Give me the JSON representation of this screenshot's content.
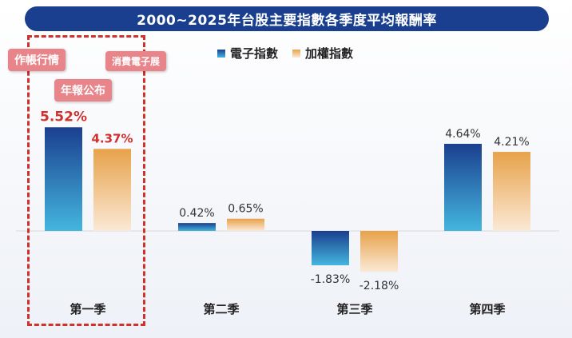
{
  "title": "2000~2025年台股主要指數各季度平均報酬率",
  "legend": {
    "electronics": "電子指數",
    "weighted": "加權指數"
  },
  "colors": {
    "electronics_top": "#1b3f8e",
    "electronics_bottom": "#44b6df",
    "weighted_top": "#e7a24a",
    "weighted_bottom": "#fbe9d6",
    "highlight": "#d0312d",
    "tag_bg": "#e8858a"
  },
  "annotations": {
    "tag1": "作帳行情",
    "tag2": "消費電子展",
    "tag3": "年報公布"
  },
  "chart_data": {
    "type": "bar",
    "categories": [
      "第一季",
      "第二季",
      "第三季",
      "第四季"
    ],
    "series": [
      {
        "name": "電子指數",
        "values": [
          5.52,
          0.42,
          -1.83,
          4.64
        ],
        "labels": [
          "5.52%",
          "0.42%",
          "-1.83%",
          "4.64%"
        ]
      },
      {
        "name": "加權指數",
        "values": [
          4.37,
          0.65,
          -2.18,
          4.21
        ],
        "labels": [
          "4.37%",
          "0.65%",
          "-2.18%",
          "4.21%"
        ]
      }
    ],
    "highlighted_category": "第一季",
    "ylim": [
      -2.5,
      6.0
    ],
    "grid": false,
    "legend_position": "top"
  }
}
